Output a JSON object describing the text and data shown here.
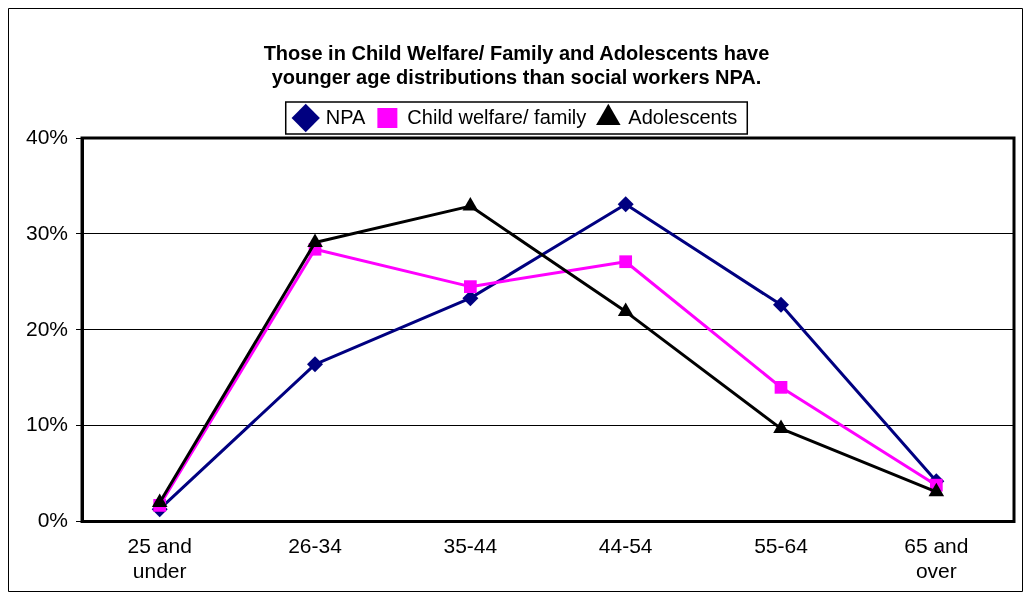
{
  "chart_data": {
    "type": "line",
    "title": "Those in Child Welfare/ Family and Adolescents have\nyounger age distributions than social workers NPA.",
    "categories": [
      "25 and under",
      "26-34",
      "35-44",
      "44-54",
      "55-64",
      "65 and over"
    ],
    "series": [
      {
        "name": "NPA",
        "color": "#000080",
        "marker": "diamond",
        "values": [
          1.3,
          16.4,
          23.3,
          33.1,
          22.6,
          4.2
        ]
      },
      {
        "name": "Child welfare/ family",
        "color": "#ff00ff",
        "marker": "square",
        "values": [
          1.7,
          28.4,
          24.5,
          27.1,
          14.0,
          3.8
        ]
      },
      {
        "name": "Adolescents",
        "color": "#000000",
        "marker": "triangle",
        "values": [
          2.0,
          29.1,
          32.9,
          21.9,
          9.7,
          3.1
        ]
      }
    ],
    "ylim": [
      0,
      40
    ],
    "yticks": [
      {
        "value": 0,
        "label": "0%"
      },
      {
        "value": 10,
        "label": "10%"
      },
      {
        "value": 20,
        "label": "20%"
      },
      {
        "value": 30,
        "label": "30%"
      },
      {
        "value": 40,
        "label": "40%"
      }
    ],
    "grid": "y",
    "legend": "top",
    "line_style": "solid"
  }
}
